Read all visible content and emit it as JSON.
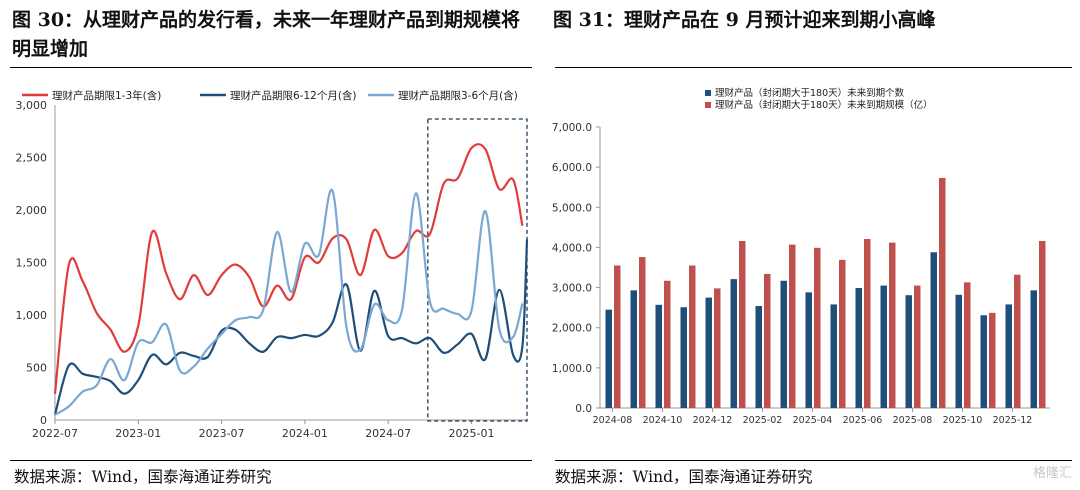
{
  "left": {
    "title": "图 30：从理财产品的发行看，未来一年理财产品到期规模将明显增加",
    "source": "数据来源：Wind，国泰海通证券研究",
    "chart_data": {
      "type": "line",
      "x_ticks": [
        "2022-07",
        "2023-01",
        "2023-07",
        "2024-01",
        "2024-07",
        "2025-01"
      ],
      "ylim": [
        0,
        3000
      ],
      "y_ticks": [
        "0",
        "500",
        "1,000",
        "1,500",
        "2,000",
        "2,500",
        "3,000"
      ],
      "series": [
        {
          "name": "理财产品期限1-3年(含)",
          "color": "#e03c3c",
          "points": [
            [
              0,
              250
            ],
            [
              3,
              1480
            ],
            [
              6,
              1320
            ],
            [
              9,
              1020
            ],
            [
              12,
              860
            ],
            [
              15,
              650
            ],
            [
              18,
              900
            ],
            [
              21,
              1790
            ],
            [
              24,
              1400
            ],
            [
              27,
              1150
            ],
            [
              30,
              1380
            ],
            [
              33,
              1190
            ],
            [
              36,
              1380
            ],
            [
              39,
              1480
            ],
            [
              42,
              1360
            ],
            [
              45,
              1080
            ],
            [
              48,
              1280
            ],
            [
              51,
              1150
            ],
            [
              54,
              1550
            ],
            [
              57,
              1500
            ],
            [
              60,
              1730
            ],
            [
              63,
              1720
            ],
            [
              66,
              1380
            ],
            [
              69,
              1810
            ],
            [
              72,
              1560
            ],
            [
              75,
              1590
            ],
            [
              78,
              1800
            ],
            [
              81,
              1770
            ],
            [
              84,
              2250
            ],
            [
              87,
              2300
            ],
            [
              90,
              2590
            ],
            [
              93,
              2580
            ],
            [
              96,
              2200
            ],
            [
              99,
              2290
            ],
            [
              101,
              1850
            ]
          ]
        },
        {
          "name": "理财产品期限6-12个月(含)",
          "color": "#1f4e79",
          "points": [
            [
              0,
              50
            ],
            [
              3,
              520
            ],
            [
              6,
              440
            ],
            [
              9,
              410
            ],
            [
              12,
              370
            ],
            [
              15,
              250
            ],
            [
              18,
              380
            ],
            [
              21,
              620
            ],
            [
              24,
              530
            ],
            [
              27,
              640
            ],
            [
              30,
              610
            ],
            [
              33,
              600
            ],
            [
              36,
              850
            ],
            [
              39,
              860
            ],
            [
              42,
              730
            ],
            [
              45,
              650
            ],
            [
              48,
              790
            ],
            [
              51,
              780
            ],
            [
              54,
              810
            ],
            [
              57,
              800
            ],
            [
              60,
              930
            ],
            [
              63,
              1290
            ],
            [
              66,
              660
            ],
            [
              69,
              1230
            ],
            [
              72,
              800
            ],
            [
              75,
              780
            ],
            [
              78,
              730
            ],
            [
              81,
              780
            ],
            [
              84,
              640
            ],
            [
              87,
              720
            ],
            [
              90,
              820
            ],
            [
              93,
              580
            ],
            [
              96,
              1240
            ],
            [
              99,
              620
            ],
            [
              101,
              700
            ],
            [
              102,
              1720
            ]
          ]
        },
        {
          "name": "理财产品期限3-6个月(含)",
          "color": "#7ba7d4",
          "points": [
            [
              0,
              50
            ],
            [
              3,
              130
            ],
            [
              6,
              270
            ],
            [
              9,
              330
            ],
            [
              12,
              580
            ],
            [
              15,
              380
            ],
            [
              18,
              740
            ],
            [
              21,
              740
            ],
            [
              24,
              910
            ],
            [
              27,
              470
            ],
            [
              30,
              510
            ],
            [
              33,
              680
            ],
            [
              36,
              820
            ],
            [
              39,
              950
            ],
            [
              42,
              980
            ],
            [
              45,
              1050
            ],
            [
              48,
              1790
            ],
            [
              51,
              1220
            ],
            [
              54,
              1680
            ],
            [
              57,
              1570
            ],
            [
              60,
              2180
            ],
            [
              63,
              880
            ],
            [
              66,
              670
            ],
            [
              69,
              1100
            ],
            [
              72,
              950
            ],
            [
              75,
              1050
            ],
            [
              78,
              2160
            ],
            [
              81,
              1130
            ],
            [
              84,
              1060
            ],
            [
              87,
              1010
            ],
            [
              90,
              1040
            ],
            [
              93,
              1990
            ],
            [
              96,
              870
            ],
            [
              99,
              790
            ],
            [
              101,
              1110
            ]
          ]
        }
      ],
      "highlight": {
        "from": 81,
        "to": 102
      }
    }
  },
  "right": {
    "title": "图 31：理财产品在 9 月预计迎来到期小高峰",
    "source": "数据来源：Wind，国泰海通证券研究",
    "chart_data": {
      "type": "bar",
      "ylim": [
        0,
        7000
      ],
      "y_ticks": [
        "0.0",
        "1,000.0",
        "2,000.0",
        "3,000.0",
        "4,000.0",
        "5,000.0",
        "6,000.0",
        "7,000.0"
      ],
      "x_ticks": [
        "2024-08",
        "2024-10",
        "2024-12",
        "2025-02",
        "2025-04",
        "2025-06",
        "2025-08",
        "2025-10",
        "2025-12"
      ],
      "categories": [
        "2024-08",
        "2024-09",
        "2024-10",
        "2024-11",
        "2024-12",
        "2025-01",
        "2025-02",
        "2025-03",
        "2025-04",
        "2025-05",
        "2025-06",
        "2025-07",
        "2025-08",
        "2025-09",
        "2025-10",
        "2025-11",
        "2025-12",
        "2026-01"
      ],
      "series": [
        {
          "name": "理财产品（封闭期大于180天）未来到期个数",
          "color": "#1f4e79",
          "values": [
            2450,
            2930,
            2570,
            2510,
            2750,
            3210,
            2540,
            3170,
            2880,
            2580,
            2990,
            3050,
            2810,
            3880,
            2820,
            2310,
            2580,
            2930
          ]
        },
        {
          "name": "理财产品（封闭期大于180天）未来到期规模（亿）",
          "color": "#c0504d",
          "values": [
            3550,
            3760,
            3170,
            3550,
            2980,
            4160,
            3340,
            4070,
            3990,
            3690,
            4210,
            4120,
            3050,
            5730,
            3130,
            2370,
            3320,
            4160
          ]
        }
      ]
    }
  },
  "watermark": "格隆汇"
}
